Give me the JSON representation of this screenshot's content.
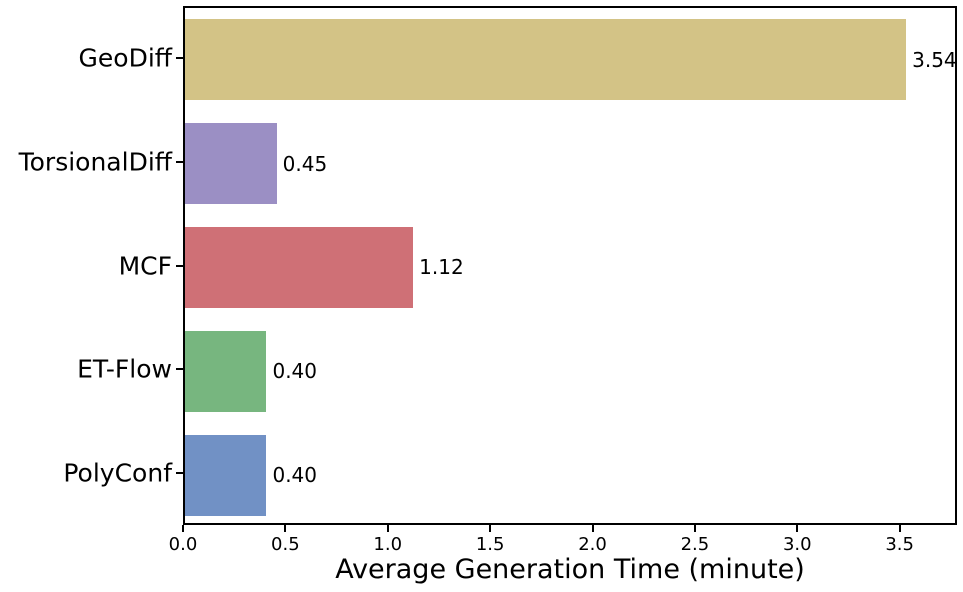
{
  "chart_data": {
    "type": "bar",
    "orientation": "horizontal",
    "title": "",
    "xlabel": "Average Generation Time (minute)",
    "ylabel": "",
    "categories": [
      "GeoDiff",
      "TorsionalDiff",
      "MCF",
      "ET-Flow",
      "PolyConf"
    ],
    "values": [
      3.54,
      0.45,
      1.12,
      0.4,
      0.4
    ],
    "value_labels": [
      "3.54",
      "0.45",
      "1.12",
      "0.40",
      "0.40"
    ],
    "bar_colors": [
      "#d3c386",
      "#9b8fc4",
      "#cf7076",
      "#77b67f",
      "#7191c5"
    ],
    "xlim": [
      0,
      3.78
    ],
    "xticks": [
      0.0,
      0.5,
      1.0,
      1.5,
      2.0,
      2.5,
      3.0,
      3.5
    ],
    "xtick_labels": [
      "0.0",
      "0.5",
      "1.0",
      "1.5",
      "2.0",
      "2.5",
      "3.0",
      "3.5"
    ],
    "grid": false,
    "legend": false,
    "bar_height_frac": 0.78,
    "spine_color": "#000000",
    "background_color": "#ffffff"
  }
}
